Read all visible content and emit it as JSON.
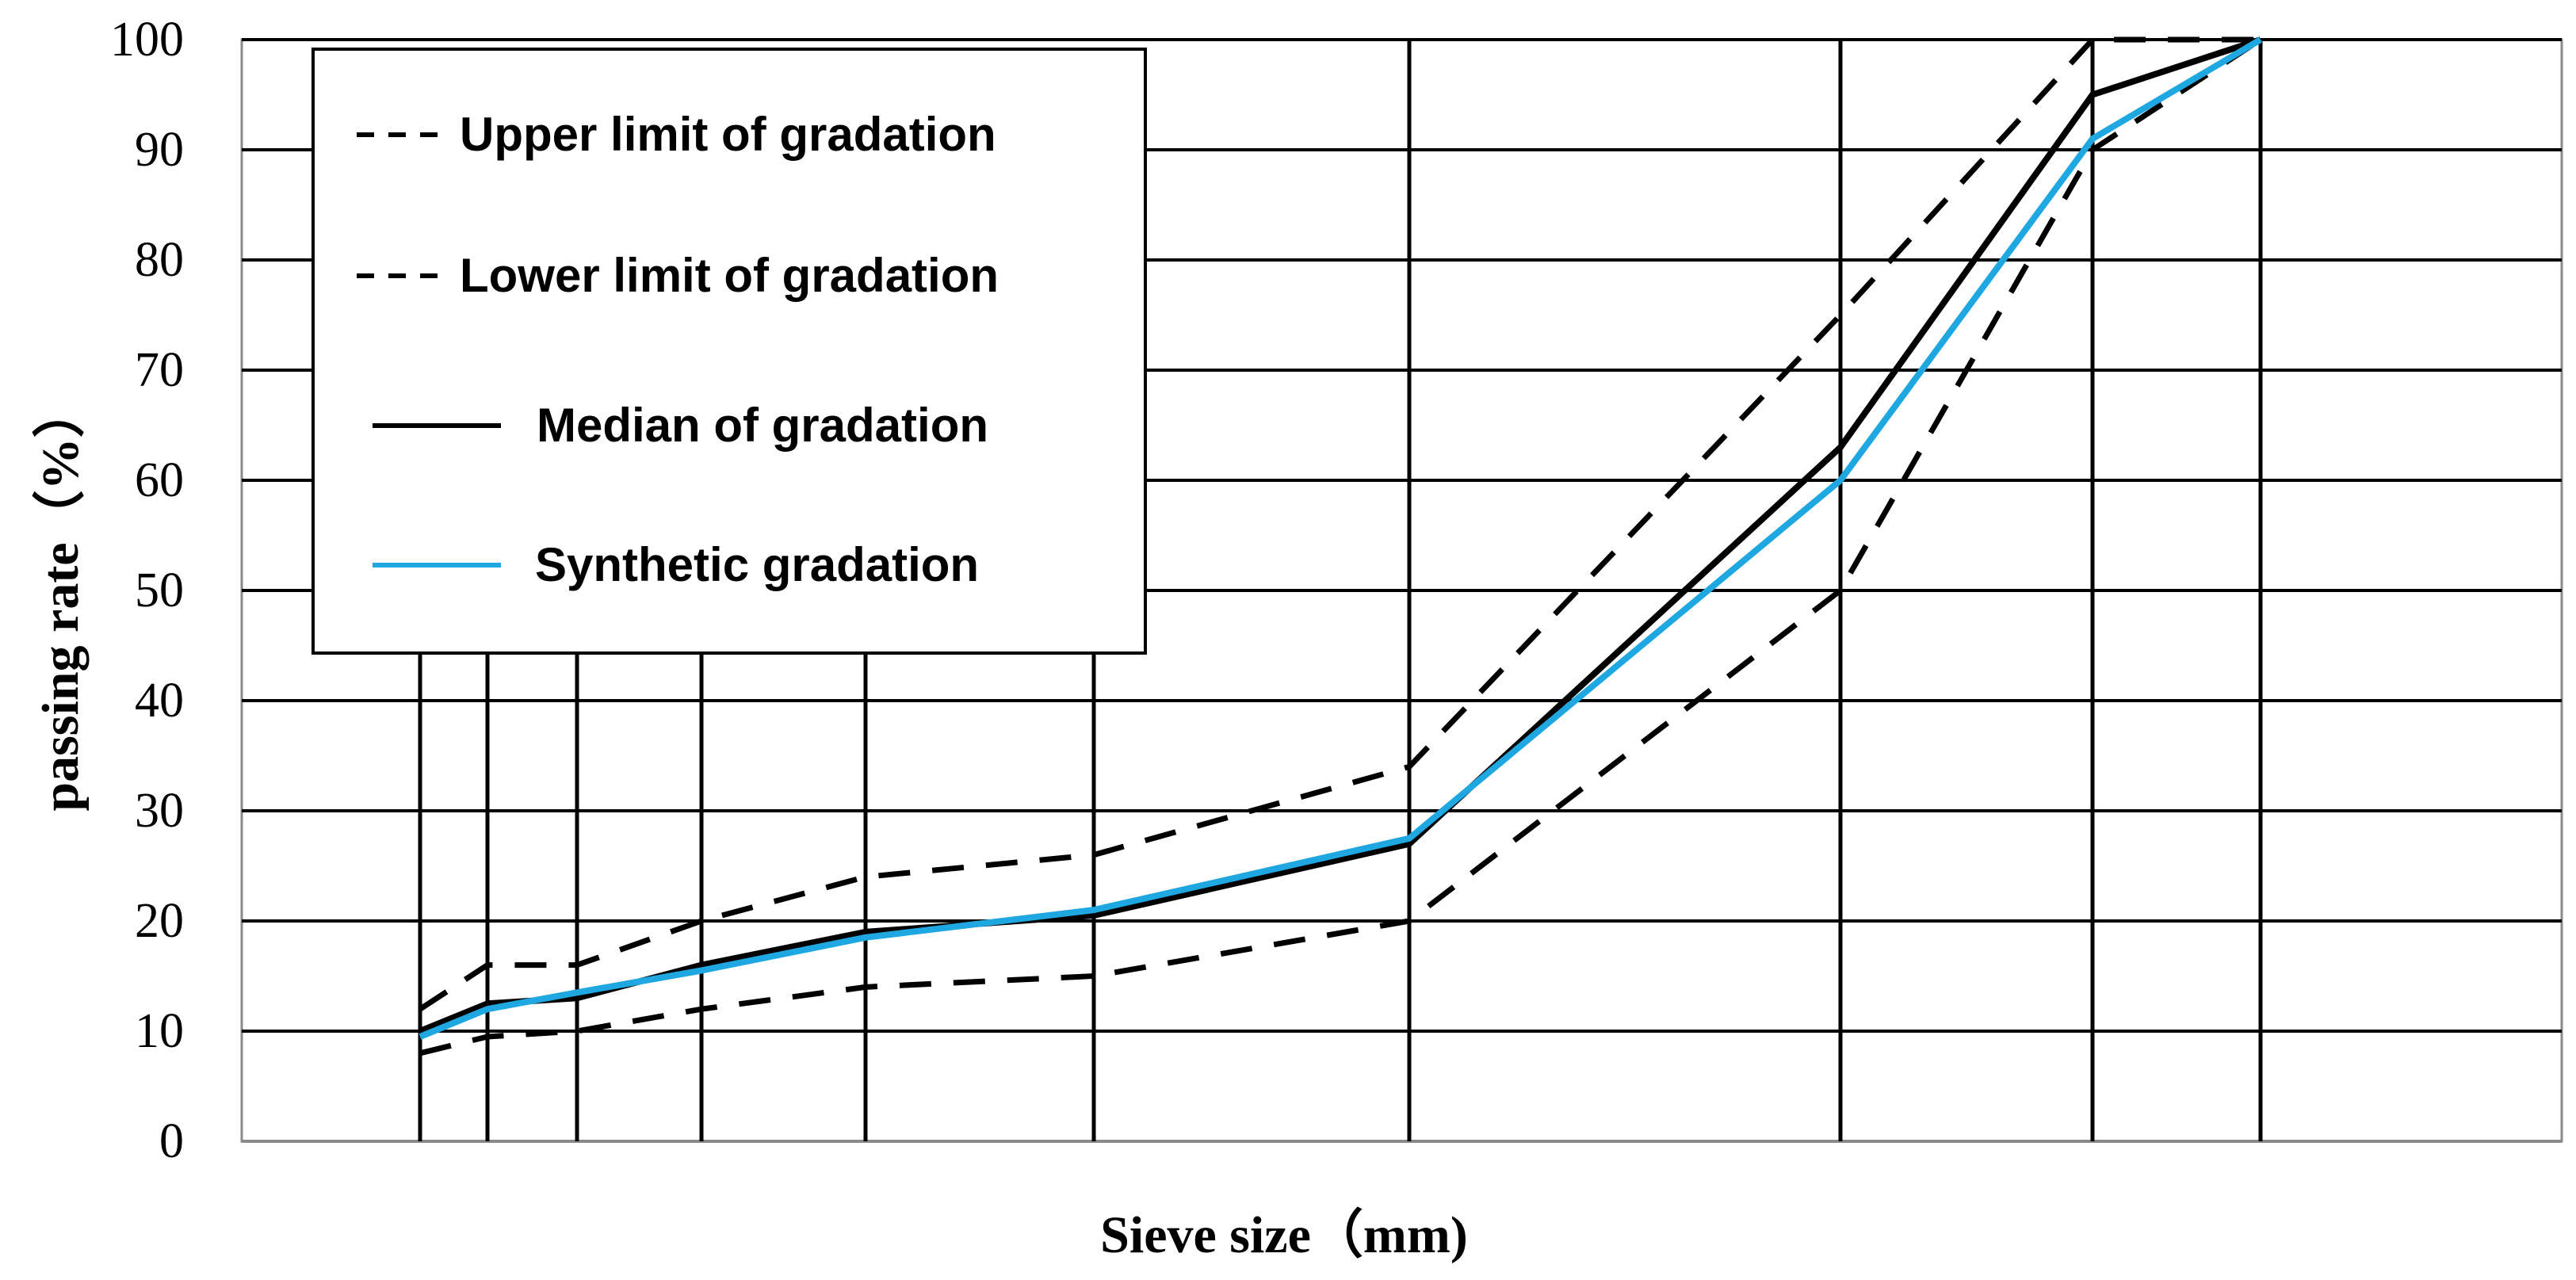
{
  "chart_data": {
    "type": "line",
    "xlabel": "Sieve size（mm)",
    "ylabel": "passing rate（%）",
    "ylim": [
      0,
      100
    ],
    "yticks": [
      "0",
      "10",
      "20",
      "30",
      "40",
      "50",
      "60",
      "70",
      "80",
      "90",
      "100"
    ],
    "x_categories_count": 10,
    "grid": true,
    "legend_position": "top-left",
    "series": [
      {
        "name": "Upper limit of gradation",
        "style": "dashed",
        "color": "#000000",
        "values": [
          12,
          16,
          16,
          20,
          24,
          26,
          34,
          75,
          100,
          100
        ]
      },
      {
        "name": "Lower limit of gradation",
        "style": "dashed",
        "color": "#000000",
        "values": [
          8,
          9.5,
          10,
          12,
          14,
          15,
          20,
          50,
          90,
          100
        ]
      },
      {
        "name": "Median of gradation",
        "style": "solid",
        "color": "#000000",
        "values": [
          10,
          12.5,
          13,
          16,
          19,
          20.5,
          27,
          63,
          95,
          100
        ]
      },
      {
        "name": "Synthetic gradation",
        "style": "solid",
        "color": "#1EA7E1",
        "values": [
          9.5,
          12,
          13.5,
          15.5,
          18.5,
          21,
          27.5,
          60,
          91,
          100
        ]
      }
    ]
  }
}
